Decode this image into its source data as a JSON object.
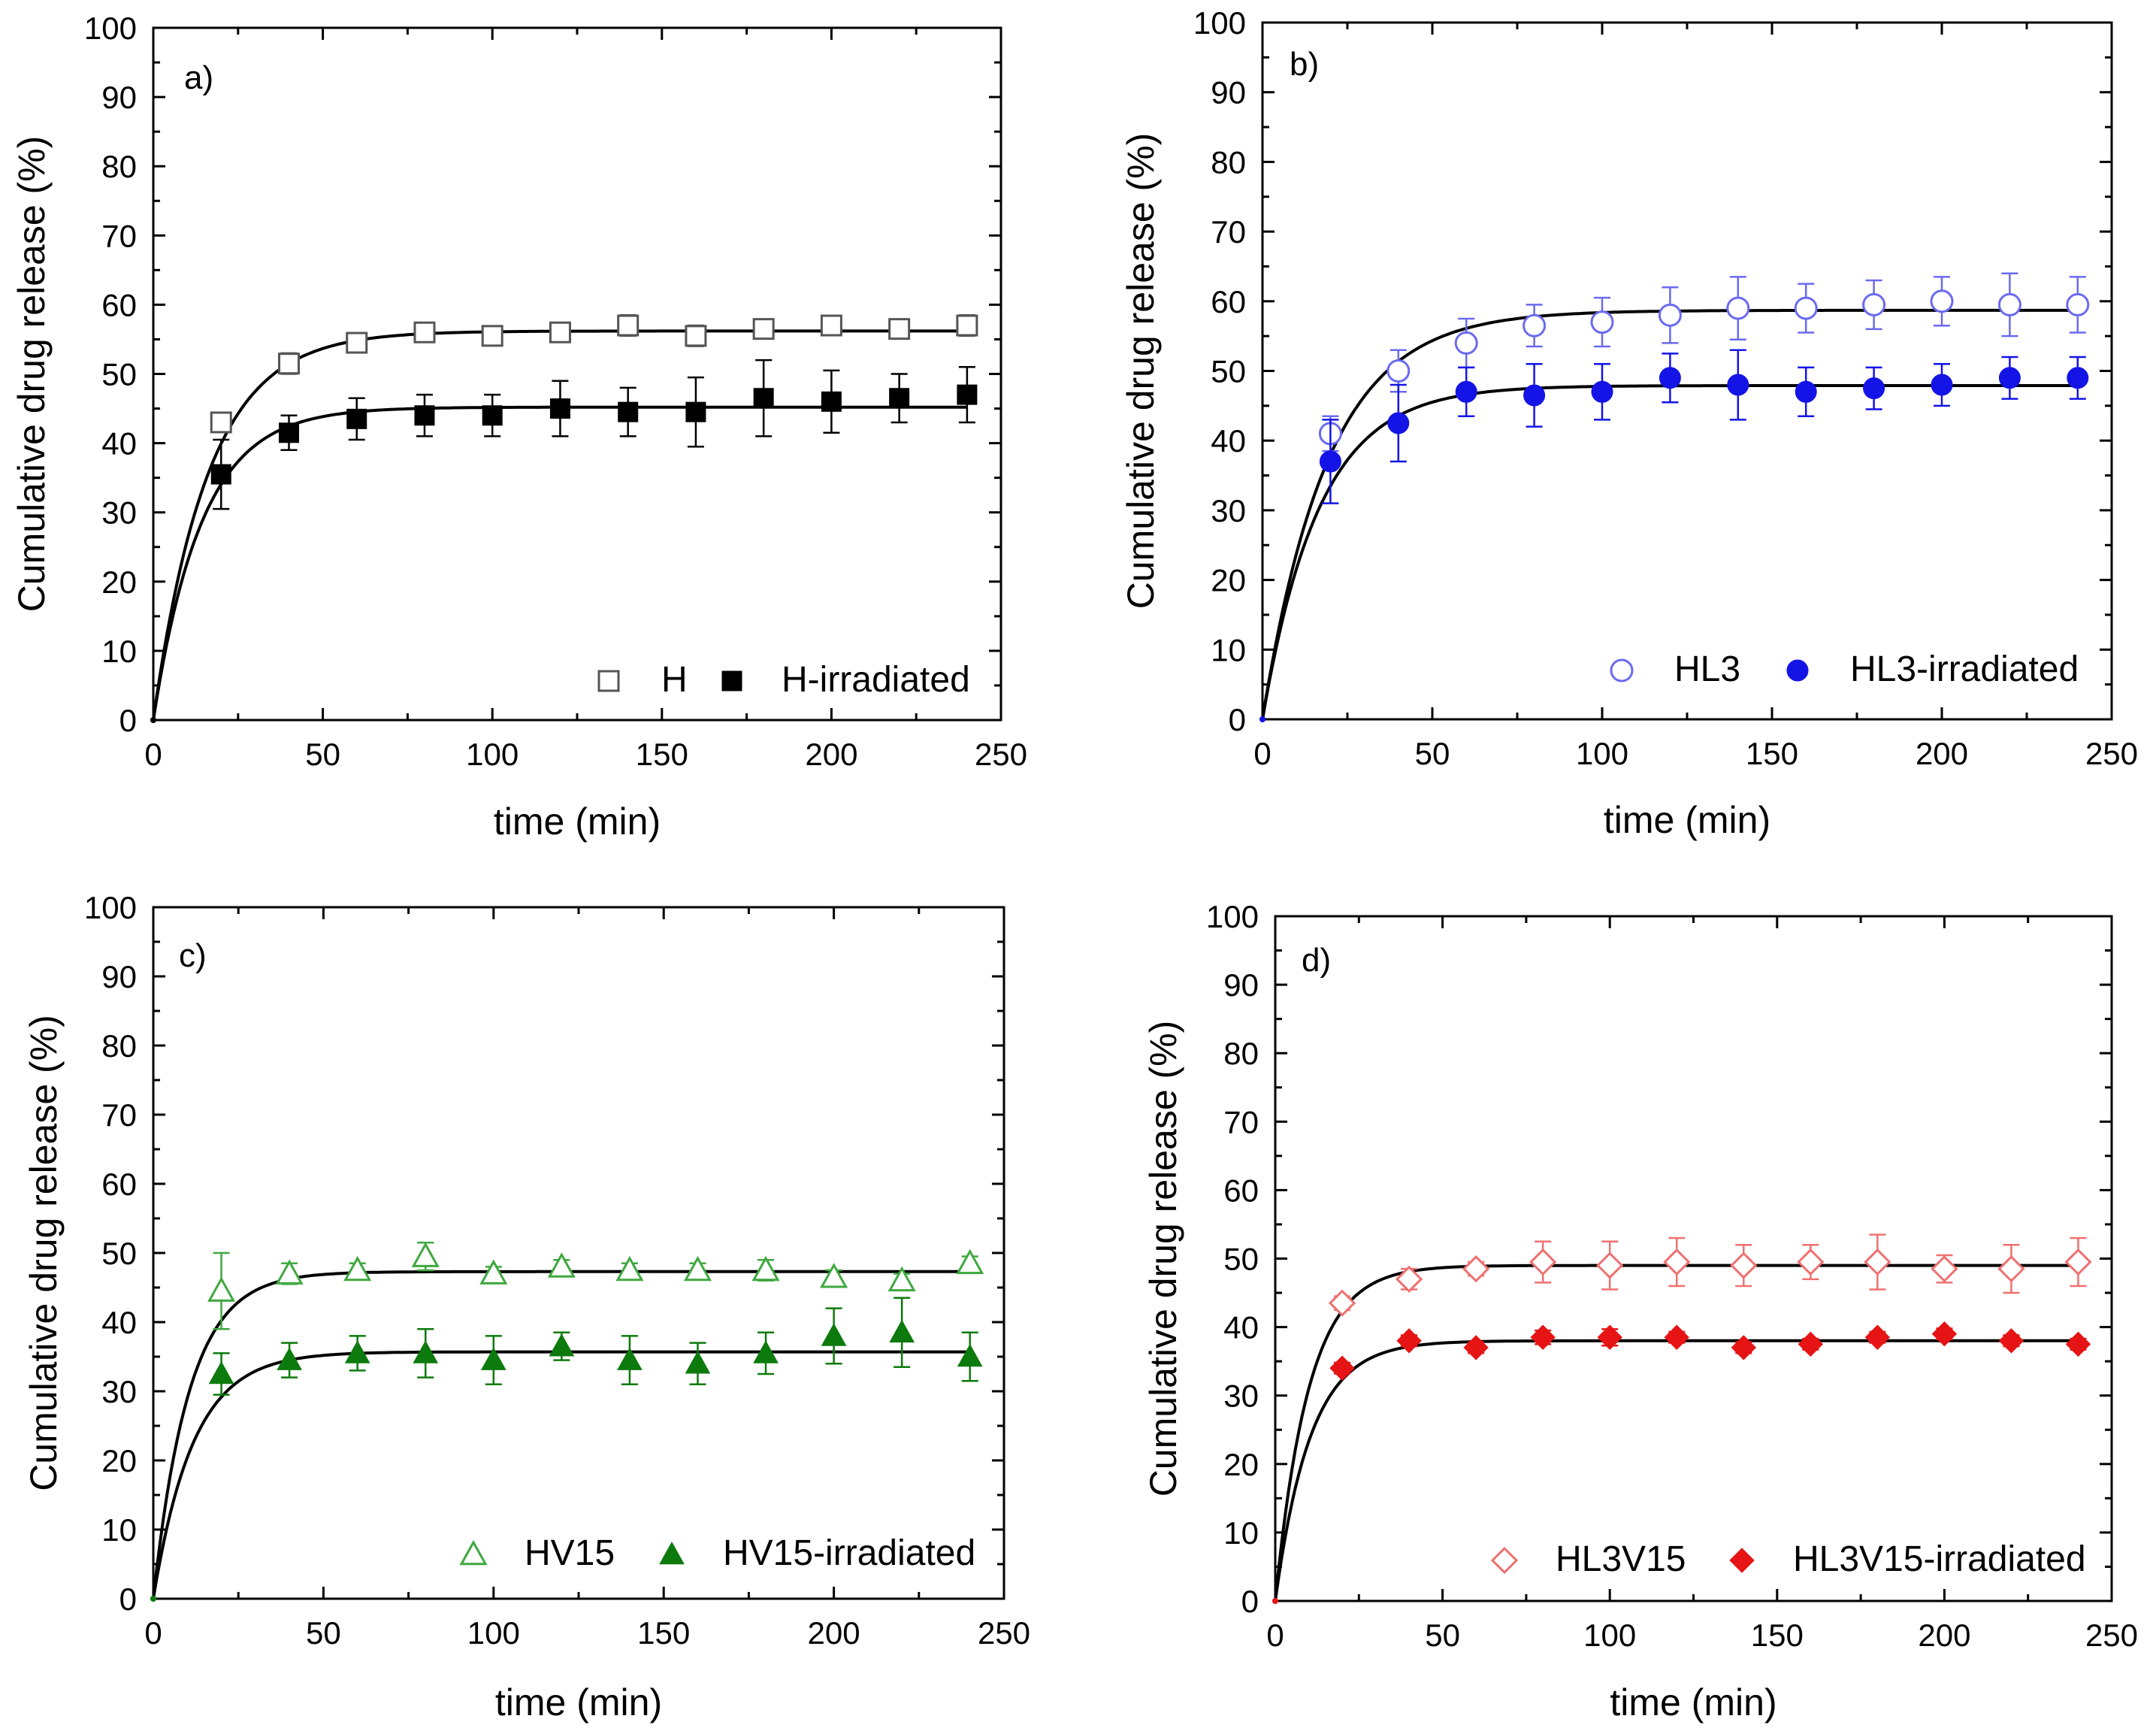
{
  "chart_data": [
    {
      "type": "scatter",
      "panel_label": "a)",
      "xlabel": "time (min)",
      "ylabel": "Cumulative drug release (%)",
      "xlim": [
        0,
        250
      ],
      "ylim": [
        0,
        100
      ],
      "xticks": [
        "0",
        "50",
        "100",
        "150",
        "200",
        "250"
      ],
      "yticks": [
        "0",
        "10",
        "20",
        "30",
        "40",
        "50",
        "60",
        "70",
        "80",
        "90",
        "100"
      ],
      "legend_position": "bottom-right",
      "series": [
        {
          "name": "H",
          "color": "#555555",
          "marker": "square-open",
          "x": [
            0,
            20,
            40,
            60,
            80,
            100,
            120,
            140,
            160,
            180,
            200,
            220,
            240
          ],
          "y": [
            0,
            43,
            51.5,
            54.5,
            56,
            55.5,
            56,
            57,
            55.5,
            56.5,
            57,
            56.5,
            57
          ],
          "err": [
            0,
            1.2,
            1.5,
            1,
            0.8,
            1,
            1,
            1.5,
            1.5,
            0.8,
            1,
            0.8,
            1.5
          ],
          "fit_plateau": 56.2,
          "fit_k": 0.062
        },
        {
          "name": "H-irradiated",
          "color": "#000000",
          "marker": "square-filled",
          "x": [
            0,
            20,
            40,
            60,
            80,
            100,
            120,
            140,
            160,
            180,
            200,
            220,
            240
          ],
          "y": [
            0,
            35.5,
            41.5,
            43.5,
            44,
            44,
            45,
            44.5,
            44.5,
            46.5,
            46,
            46.5,
            47
          ],
          "err": [
            0,
            5,
            2.5,
            3,
            3,
            3,
            4,
            3.5,
            5,
            5.5,
            4.5,
            3.5,
            4
          ],
          "fit_plateau": 45.2,
          "fit_k": 0.07
        }
      ]
    },
    {
      "type": "scatter",
      "panel_label": "b)",
      "xlabel": "time (min)",
      "ylabel": "Cumulative drug release (%)",
      "xlim": [
        0,
        250
      ],
      "ylim": [
        0,
        100
      ],
      "xticks": [
        "0",
        "50",
        "100",
        "150",
        "200",
        "250"
      ],
      "yticks": [
        "0",
        "10",
        "20",
        "30",
        "40",
        "50",
        "60",
        "70",
        "80",
        "90",
        "100"
      ],
      "legend_position": "bottom-right",
      "series": [
        {
          "name": "HL3",
          "color": "#6a6af0",
          "marker": "circle-open",
          "x": [
            0,
            20,
            40,
            60,
            80,
            100,
            120,
            140,
            160,
            180,
            200,
            220,
            240
          ],
          "y": [
            0,
            41,
            50,
            54,
            56.5,
            57,
            58,
            59,
            59,
            59.5,
            60,
            59.5,
            59.5
          ],
          "err": [
            0,
            2.5,
            3,
            3.5,
            3,
            3.5,
            4,
            4.5,
            3.5,
            3.5,
            3.5,
            4.5,
            4
          ],
          "fit_plateau": 58.7,
          "fit_k": 0.052
        },
        {
          "name": "HL3-irradiated",
          "color": "#1414e6",
          "marker": "circle-filled",
          "x": [
            0,
            20,
            40,
            60,
            80,
            100,
            120,
            140,
            160,
            180,
            200,
            220,
            240
          ],
          "y": [
            0,
            37,
            42.5,
            47,
            46.5,
            47,
            49,
            48,
            47,
            47.5,
            48,
            49,
            49
          ],
          "err": [
            0,
            6,
            5.5,
            3.5,
            4.5,
            4,
            3.5,
            5,
            3.5,
            3,
            3,
            3,
            3
          ],
          "fit_plateau": 47.9,
          "fit_k": 0.06
        }
      ]
    },
    {
      "type": "scatter",
      "panel_label": "c)",
      "xlabel": "time (min)",
      "ylabel": "Cumulative drug release (%)",
      "xlim": [
        0,
        250
      ],
      "ylim": [
        0,
        100
      ],
      "xticks": [
        "0",
        "50",
        "100",
        "150",
        "200",
        "250"
      ],
      "yticks": [
        "0",
        "10",
        "20",
        "30",
        "40",
        "50",
        "60",
        "70",
        "80",
        "90",
        "100"
      ],
      "legend_position": "bottom-right",
      "series": [
        {
          "name": "HV15",
          "color": "#3fa83f",
          "marker": "triangle-open",
          "x": [
            0,
            20,
            40,
            60,
            80,
            100,
            120,
            140,
            160,
            180,
            200,
            220,
            240
          ],
          "y": [
            0,
            44.5,
            47,
            47.5,
            49.5,
            47,
            48,
            47.5,
            47.5,
            47.5,
            46.5,
            46,
            48.5
          ],
          "err": [
            0,
            5.5,
            1.5,
            1,
            2,
            1,
            1,
            1,
            1,
            1.5,
            1,
            1,
            1
          ],
          "fit_plateau": 47.3,
          "fit_k": 0.095
        },
        {
          "name": "HV15-irradiated",
          "color": "#0c7a0c",
          "marker": "triangle-filled",
          "x": [
            0,
            20,
            40,
            60,
            80,
            100,
            120,
            140,
            160,
            180,
            200,
            220,
            240
          ],
          "y": [
            0,
            32.5,
            34.5,
            35.5,
            35.5,
            34.5,
            36.5,
            34.5,
            34,
            35.5,
            38,
            38.5,
            35
          ],
          "err": [
            0,
            3,
            2.5,
            2.5,
            3.5,
            3.5,
            2,
            3.5,
            3,
            3,
            4,
            5,
            3.5
          ],
          "fit_plateau": 35.7,
          "fit_k": 0.085
        }
      ]
    },
    {
      "type": "scatter",
      "panel_label": "d)",
      "xlabel": "time (min)",
      "ylabel": "Cumulative drug release (%)",
      "xlim": [
        0,
        250
      ],
      "ylim": [
        0,
        100
      ],
      "xticks": [
        "0",
        "50",
        "100",
        "150",
        "200",
        "250"
      ],
      "yticks": [
        "0",
        "10",
        "20",
        "30",
        "40",
        "50",
        "60",
        "70",
        "80",
        "90",
        "100"
      ],
      "legend_position": "bottom-right",
      "series": [
        {
          "name": "HL3V15",
          "color": "#f07070",
          "marker": "diamond-open",
          "x": [
            0,
            20,
            40,
            60,
            80,
            100,
            120,
            140,
            160,
            180,
            200,
            220,
            240
          ],
          "y": [
            0,
            43.5,
            47,
            48.5,
            49.5,
            49,
            49.5,
            49,
            49.5,
            49.5,
            48.5,
            48.5,
            49.5
          ],
          "err": [
            0,
            1,
            1.5,
            1,
            3,
            3.5,
            3.5,
            3,
            2.5,
            4,
            2,
            3.5,
            3.5
          ],
          "fit_plateau": 49,
          "fit_k": 0.1
        },
        {
          "name": "HL3V15-irradiated",
          "color": "#e61414",
          "marker": "diamond-filled",
          "x": [
            0,
            20,
            40,
            60,
            80,
            100,
            120,
            140,
            160,
            180,
            200,
            220,
            240
          ],
          "y": [
            0,
            34,
            38,
            37,
            38.5,
            38.5,
            38.5,
            37,
            37.5,
            38.5,
            39,
            38,
            37.5
          ],
          "err": [
            0,
            0.8,
            0.8,
            0.8,
            1,
            1.2,
            0.8,
            0.8,
            0.8,
            0.8,
            0.8,
            0.8,
            0.8
          ],
          "fit_plateau": 38,
          "fit_k": 0.095
        }
      ]
    }
  ]
}
